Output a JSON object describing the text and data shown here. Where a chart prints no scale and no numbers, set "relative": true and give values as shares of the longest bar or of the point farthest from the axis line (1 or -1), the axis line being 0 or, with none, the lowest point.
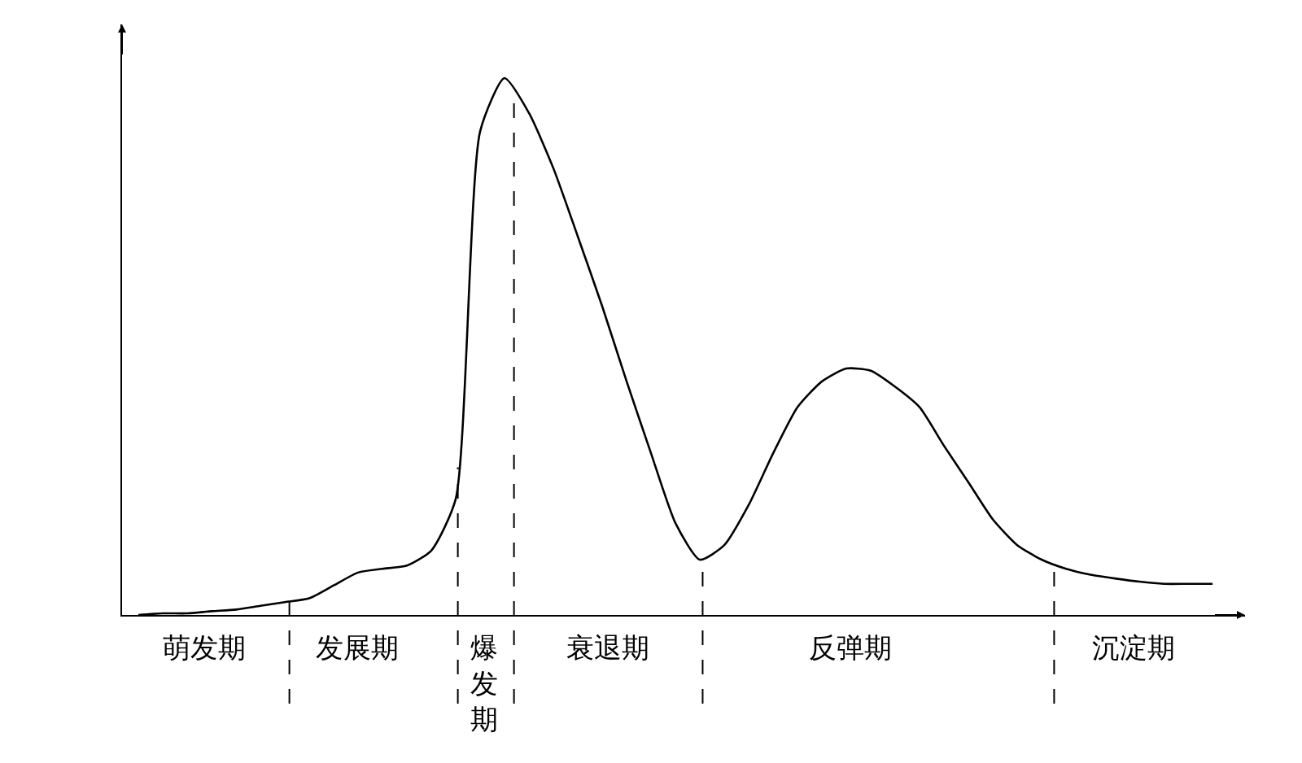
{
  "chart_data": {
    "type": "line",
    "relative": true,
    "line_style": "solid",
    "categories": [
      null,
      null,
      null,
      null,
      null,
      null,
      null,
      null,
      null,
      null,
      null,
      null,
      null,
      null,
      null,
      null,
      null,
      null,
      null,
      null,
      null,
      null,
      null,
      null,
      null,
      null,
      null,
      null,
      null,
      null,
      null,
      null,
      null,
      null,
      null,
      null,
      null,
      null,
      null,
      null,
      null,
      null,
      null,
      null,
      null
    ],
    "series": [
      {
        "color": "#000000",
        "values": [
          0,
          0.003,
          0.003,
          0.007,
          0.01,
          0.017,
          0.024,
          0.031,
          0.055,
          0.079,
          0.086,
          0.092,
          0.12,
          0.216,
          0.901,
          1,
          0.935,
          0.832,
          0.705,
          0.575,
          0.435,
          0.301,
          0.171,
          0.103,
          0.13,
          0.205,
          0.301,
          0.387,
          0.435,
          0.459,
          0.455,
          0.425,
          0.387,
          0.315,
          0.247,
          0.178,
          0.13,
          0.103,
          0.086,
          0.075,
          0.068,
          0.062,
          0.058,
          0.058,
          0.058
        ]
      }
    ],
    "annotations": [
      "萌发期",
      "发展期",
      "爆发期",
      "衰退期",
      "反弹期",
      "沉淀期"
    ]
  }
}
